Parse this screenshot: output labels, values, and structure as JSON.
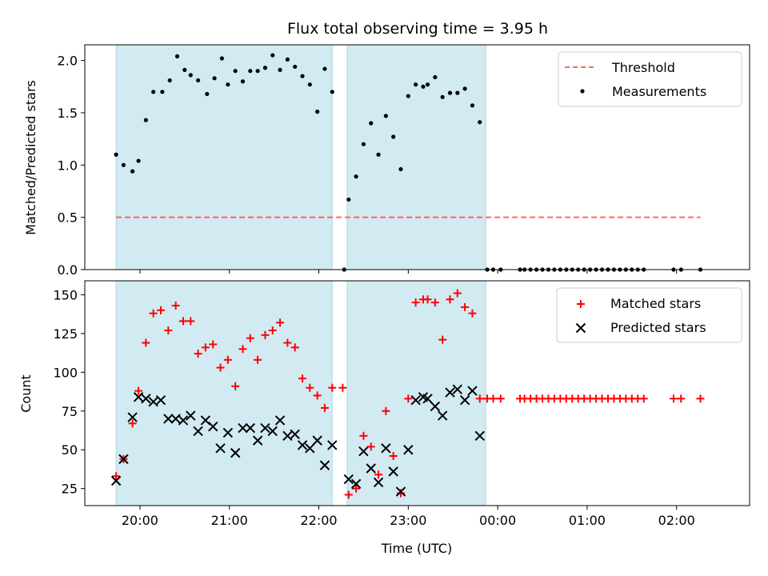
{
  "colors": {
    "band": "#add8e6",
    "threshold": "#ff6666",
    "measurement": "#000000",
    "matched": "#ff0000",
    "predicted": "#000000"
  },
  "chart_data": [
    {
      "type": "scatter",
      "title": "Flux total observing time = 3.95 h",
      "xlabel": "",
      "ylabel": "Matched/Predicted stars",
      "ylim": [
        0,
        2.15
      ],
      "yticks": [
        0.0,
        0.5,
        1.0,
        1.5,
        2.0
      ],
      "ytick_labels": [
        "0.0",
        "0.5",
        "1.0",
        "1.5",
        "2.0"
      ],
      "xlim": [
        "19:23",
        "02:49"
      ],
      "xticks": [
        "20:00",
        "21:00",
        "22:00",
        "23:00",
        "00:00",
        "01:00",
        "02:00"
      ],
      "xtick_labels": [],
      "shaded_intervals": [
        [
          "19:44",
          "22:09"
        ],
        [
          "22:19",
          "23:52"
        ]
      ],
      "threshold": {
        "name": "Threshold",
        "y": 0.5,
        "x_range": [
          "19:44",
          "02:16"
        ]
      },
      "legend": {
        "position": "top-right",
        "entries": [
          "Threshold",
          "Measurements"
        ]
      },
      "series": [
        {
          "name": "Measurements",
          "marker": "dot",
          "x": [
            "19:44",
            "19:49",
            "19:55",
            "19:59",
            "20:04",
            "20:09",
            "20:15",
            "20:20",
            "20:25",
            "20:30",
            "20:34",
            "20:39",
            "20:45",
            "20:50",
            "20:55",
            "20:59",
            "21:04",
            "21:09",
            "21:14",
            "21:19",
            "21:24",
            "21:29",
            "21:34",
            "21:39",
            "21:44",
            "21:49",
            "21:54",
            "21:59",
            "22:04",
            "22:09",
            "22:17",
            "22:20",
            "22:25",
            "22:30",
            "22:35",
            "22:40",
            "22:45",
            "22:50",
            "22:55",
            "23:00",
            "23:05",
            "23:10",
            "23:13",
            "23:18",
            "23:23",
            "23:28",
            "23:33",
            "23:38",
            "23:43",
            "23:48",
            "23:53",
            "23:57",
            "00:02",
            "00:15",
            "00:18",
            "00:22",
            "00:26",
            "00:30",
            "00:34",
            "00:38",
            "00:42",
            "00:46",
            "00:50",
            "00:54",
            "00:58",
            "01:02",
            "01:06",
            "01:10",
            "01:14",
            "01:18",
            "01:22",
            "01:26",
            "01:30",
            "01:34",
            "01:38",
            "01:58",
            "02:03",
            "02:16"
          ],
          "values": [
            1.1,
            1.0,
            0.94,
            1.04,
            1.43,
            1.7,
            1.7,
            1.81,
            2.04,
            1.91,
            1.86,
            1.81,
            1.68,
            1.83,
            2.02,
            1.77,
            1.9,
            1.8,
            1.9,
            1.9,
            1.93,
            2.05,
            1.91,
            2.01,
            1.94,
            1.85,
            1.77,
            1.51,
            1.92,
            1.7,
            0.0,
            0.67,
            0.89,
            1.2,
            1.4,
            1.1,
            1.47,
            1.27,
            0.96,
            1.66,
            1.77,
            1.75,
            1.77,
            1.84,
            1.65,
            1.69,
            1.69,
            1.73,
            1.57,
            1.41,
            0.0,
            0.0,
            0.0,
            0.0,
            0.0,
            0.0,
            0.0,
            0.0,
            0.0,
            0.0,
            0.0,
            0.0,
            0.0,
            0.0,
            0.0,
            0.0,
            0.0,
            0.0,
            0.0,
            0.0,
            0.0,
            0.0,
            0.0,
            0.0,
            0.0,
            0.0,
            0.0,
            0.0
          ]
        }
      ]
    },
    {
      "type": "scatter",
      "title": "",
      "xlabel": "Time (UTC)",
      "ylabel": "Count",
      "ylim": [
        14,
        159
      ],
      "yticks": [
        25,
        50,
        75,
        100,
        125,
        150
      ],
      "ytick_labels": [
        "25",
        "50",
        "75",
        "100",
        "125",
        "150"
      ],
      "xlim": [
        "19:23",
        "02:49"
      ],
      "xticks": [
        "20:00",
        "21:00",
        "22:00",
        "23:00",
        "00:00",
        "01:00",
        "02:00"
      ],
      "xtick_labels": [
        "20:00",
        "21:00",
        "22:00",
        "23:00",
        "00:00",
        "01:00",
        "02:00"
      ],
      "shaded_intervals": [
        [
          "19:44",
          "22:09"
        ],
        [
          "22:19",
          "23:52"
        ]
      ],
      "legend": {
        "position": "top-right",
        "entries": [
          "Matched stars",
          "Predicted stars"
        ]
      },
      "series": [
        {
          "name": "Matched stars",
          "marker": "plus",
          "x": [
            "19:44",
            "19:49",
            "19:55",
            "19:59",
            "20:04",
            "20:09",
            "20:14",
            "20:19",
            "20:24",
            "20:29",
            "20:34",
            "20:39",
            "20:44",
            "20:49",
            "20:54",
            "20:59",
            "21:04",
            "21:09",
            "21:14",
            "21:19",
            "21:24",
            "21:29",
            "21:34",
            "21:39",
            "21:44",
            "21:49",
            "21:54",
            "21:59",
            "22:04",
            "22:09",
            "22:16",
            "22:20",
            "22:25",
            "22:30",
            "22:35",
            "22:40",
            "22:45",
            "22:50",
            "22:55",
            "23:00",
            "23:05",
            "23:10",
            "23:13",
            "23:18",
            "23:23",
            "23:28",
            "23:33",
            "23:38",
            "23:43",
            "23:48",
            "23:53",
            "23:57",
            "00:02",
            "00:15",
            "00:18",
            "00:22",
            "00:26",
            "00:30",
            "00:34",
            "00:38",
            "00:42",
            "00:46",
            "00:50",
            "00:54",
            "00:58",
            "01:02",
            "01:06",
            "01:10",
            "01:14",
            "01:18",
            "01:22",
            "01:26",
            "01:30",
            "01:34",
            "01:38",
            "01:58",
            "02:03",
            "02:16"
          ],
          "values": [
            33,
            44,
            67,
            88,
            119,
            138,
            140,
            127,
            143,
            133,
            133,
            112,
            116,
            118,
            103,
            108,
            91,
            115,
            122,
            108,
            124,
            127,
            132,
            119,
            116,
            96,
            90,
            85,
            77,
            90,
            90,
            21,
            25,
            59,
            52,
            34,
            75,
            46,
            22,
            83,
            145,
            147,
            147,
            145,
            121,
            147,
            151,
            142,
            138,
            83,
            83,
            83,
            83,
            83,
            83,
            83,
            83,
            83,
            83,
            83,
            83,
            83,
            83,
            83,
            83,
            83,
            83,
            83,
            83,
            83,
            83,
            83,
            83,
            83,
            83,
            83,
            83,
            83
          ]
        },
        {
          "name": "Predicted stars",
          "marker": "x",
          "x": [
            "19:44",
            "19:49",
            "19:55",
            "19:59",
            "20:04",
            "20:09",
            "20:14",
            "20:19",
            "20:24",
            "20:29",
            "20:34",
            "20:39",
            "20:44",
            "20:49",
            "20:54",
            "20:59",
            "21:04",
            "21:09",
            "21:14",
            "21:19",
            "21:24",
            "21:29",
            "21:34",
            "21:39",
            "21:44",
            "21:49",
            "21:54",
            "21:59",
            "22:04",
            "22:09",
            "22:20",
            "22:25",
            "22:30",
            "22:35",
            "22:40",
            "22:45",
            "22:50",
            "22:55",
            "23:00",
            "23:05",
            "23:10",
            "23:13",
            "23:18",
            "23:23",
            "23:28",
            "23:33",
            "23:38",
            "23:43",
            "23:48"
          ],
          "values": [
            30,
            44,
            71,
            84,
            83,
            81,
            82,
            70,
            70,
            69,
            72,
            62,
            69,
            65,
            51,
            61,
            48,
            64,
            64,
            56,
            64,
            62,
            69,
            59,
            60,
            53,
            51,
            56,
            40,
            53,
            31,
            28,
            49,
            38,
            29,
            51,
            36,
            23,
            50,
            82,
            84,
            83,
            78,
            72,
            87,
            89,
            82,
            88,
            59
          ]
        }
      ]
    }
  ]
}
